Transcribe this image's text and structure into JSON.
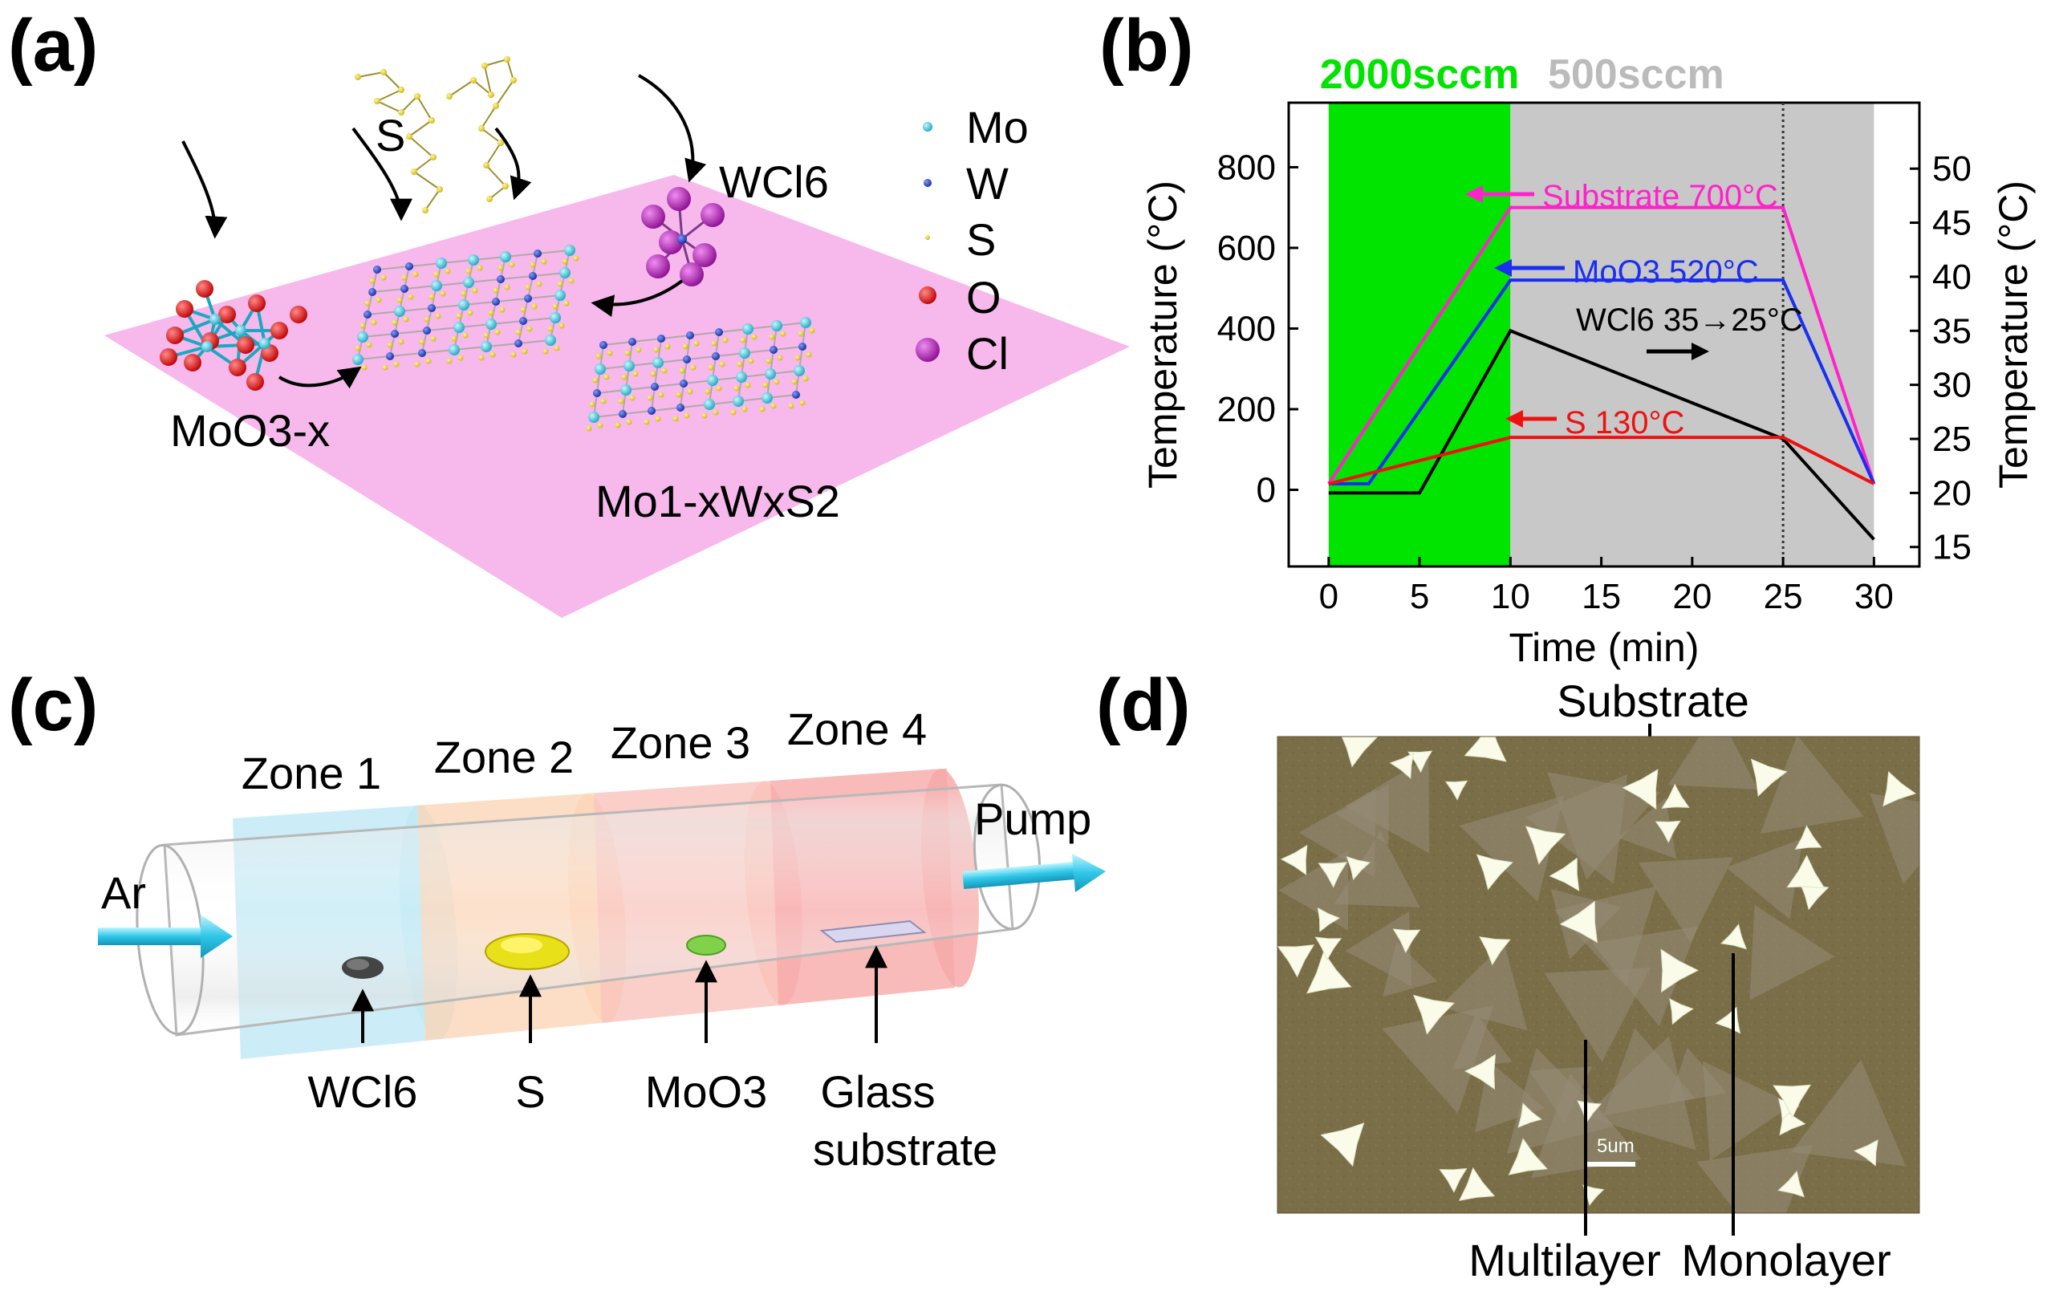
{
  "panel_labels": {
    "a": "(a)",
    "b": "(b)",
    "c": "(c)",
    "d": "(d)"
  },
  "panel_a": {
    "legend": [
      {
        "label": "Mo",
        "color": "#2ec4d8"
      },
      {
        "label": "W",
        "color": "#1f3fb8"
      },
      {
        "label": "S",
        "color": "#e6d21a"
      },
      {
        "label": "O",
        "color": "#e01818"
      },
      {
        "label": "Cl",
        "color": "#b21fb8"
      }
    ],
    "label_s": "S",
    "label_wcl6": "WCl6",
    "label_moo3x": "MoO3-x",
    "label_alloy": "Mo1-xWxS2",
    "substrate_color": "#f7b8ec"
  },
  "chart_data": {
    "type": "line",
    "title": "",
    "xlabel": "Time (min)",
    "ylabel": "Temperature (°C)",
    "y2label": "Temperature (°C)",
    "xlim": [
      -2.2,
      32.5
    ],
    "ylim": [
      -190,
      960
    ],
    "y2lim": [
      13.2,
      56.1
    ],
    "xticks": [
      0,
      5,
      10,
      15,
      20,
      25,
      30
    ],
    "yticks": [
      0,
      200,
      400,
      600,
      800
    ],
    "y2ticks": [
      15,
      20,
      25,
      30,
      35,
      40,
      45,
      50
    ],
    "regions": [
      {
        "label": "2000sccm",
        "x": [
          0,
          10
        ],
        "color": "#00e400",
        "label_color": "#00e400"
      },
      {
        "label": "500sccm",
        "x": [
          10,
          30
        ],
        "color": "#c8c8c8",
        "label_color": "#bbbbbb"
      }
    ],
    "vline_x": 25,
    "series": [
      {
        "name": "Substrate 700°C",
        "axis": "left",
        "color": "#ff22cc",
        "x": [
          0,
          10,
          25,
          30
        ],
        "y": [
          15,
          700,
          700,
          15
        ]
      },
      {
        "name": "MoO3 520°C",
        "axis": "left",
        "color": "#1a2ff0",
        "x": [
          0,
          2.2,
          10,
          25,
          30
        ],
        "y": [
          15,
          15,
          520,
          520,
          15
        ]
      },
      {
        "name": "WCl6 35→25°C",
        "axis": "right",
        "color": "#000000",
        "x": [
          0,
          5,
          10,
          25,
          30
        ],
        "y": [
          20,
          20,
          35,
          25,
          15.7
        ]
      },
      {
        "name": "S 130°C",
        "axis": "left",
        "color": "#ee1111",
        "x": [
          0,
          10,
          25,
          30
        ],
        "y": [
          15,
          130,
          130,
          15
        ]
      }
    ],
    "annotations": [
      {
        "text": "Substrate 700°C",
        "color": "#ff22cc"
      },
      {
        "text": "MoO3 520°C",
        "color": "#1a2ff0"
      },
      {
        "text": "WCl6 35→25°C",
        "color": "#000000"
      },
      {
        "text": "S 130°C",
        "color": "#ee1111"
      }
    ]
  },
  "panel_c": {
    "zones": [
      "Zone 1",
      "Zone 2",
      "Zone 3",
      "Zone 4"
    ],
    "zone_colors": [
      "#bfe9f5",
      "#fbd6b8",
      "#f9c3bb",
      "#f7a9a9"
    ],
    "gas_in": "Ar",
    "gas_out": "Pump",
    "materials": [
      "WCl6",
      "S",
      "MoO3",
      "Glass",
      "substrate"
    ]
  },
  "panel_d": {
    "top_label": "Substrate",
    "bottom_labels": [
      "Multilayer",
      "Monolayer"
    ],
    "scale_label": "5um",
    "background_color": "#7a6e48"
  }
}
